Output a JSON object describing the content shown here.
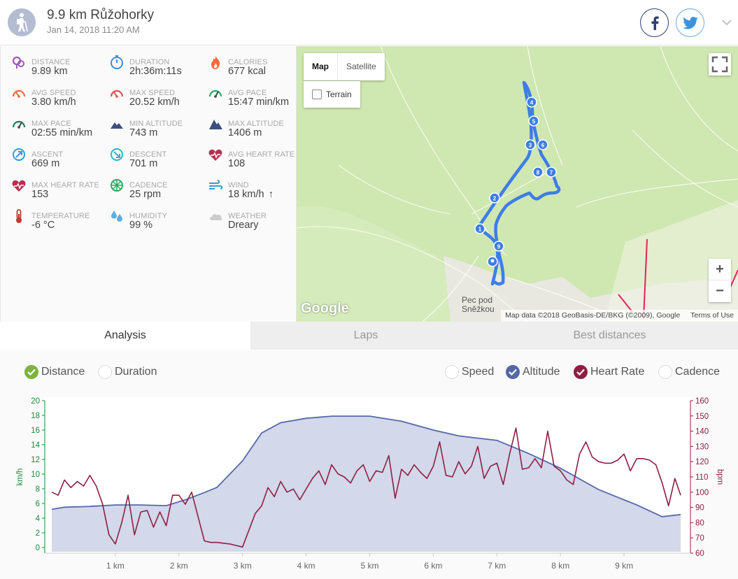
{
  "header": {
    "title": "9.9 km Růžohorky",
    "date": "Jan 14, 2018 11:20 AM",
    "avatar_icon": "hiker-icon",
    "social": [
      {
        "name": "facebook",
        "glyph": "f",
        "color": "#2d3f73"
      },
      {
        "name": "twitter",
        "glyph": "twitter-bird-icon",
        "color": "#3b94d9"
      }
    ]
  },
  "stats": [
    {
      "label": "DISTANCE",
      "value": "9.89 km",
      "icon": "location-pins-icon",
      "color": "#9b59b6"
    },
    {
      "label": "DURATION",
      "value": "2h:36m:11s",
      "icon": "stopwatch-icon",
      "color": "#3b8ee8"
    },
    {
      "label": "CALORIES",
      "value": "677 kcal",
      "icon": "flame-icon",
      "color": "#f26b3a"
    },
    {
      "label": "AVG SPEED",
      "value": "3.80 km/h",
      "icon": "speedometer-icon",
      "color": "#f26b3a"
    },
    {
      "label": "MAX SPEED",
      "value": "20.52 km/h",
      "icon": "speedometer-icon",
      "color": "#d9534f"
    },
    {
      "label": "AVG PACE",
      "value": "15:47 min/km",
      "icon": "pace-gauge-icon",
      "color": "#27ae60"
    },
    {
      "label": "MAX PACE",
      "value": "02:55 min/km",
      "icon": "pace-gauge-icon",
      "color": "#1f7a5a"
    },
    {
      "label": "MIN ALTITUDE",
      "value": "743 m",
      "icon": "mountain-low-icon",
      "color": "#3d4f7e"
    },
    {
      "label": "MAX ALTITUDE",
      "value": "1406 m",
      "icon": "mountain-high-icon",
      "color": "#3d4f7e"
    },
    {
      "label": "ASCENT",
      "value": "669 m",
      "icon": "ascent-arrow-icon",
      "color": "#2b9fd9"
    },
    {
      "label": "DESCENT",
      "value": "701 m",
      "icon": "descent-arrow-icon",
      "color": "#2bb5c9"
    },
    {
      "label": "AVG HEART RATE",
      "value": "108",
      "icon": "heart-rate-icon",
      "color": "#b8304f"
    },
    {
      "label": "MAX HEART RATE",
      "value": "153",
      "icon": "heart-rate-icon",
      "color": "#b8304f"
    },
    {
      "label": "CADENCE",
      "value": "25 rpm",
      "icon": "cadence-wheel-icon",
      "color": "#27ae60"
    },
    {
      "label": "WIND",
      "value": "18 km/h",
      "icon": "wind-icon",
      "color": "#3b9ad9",
      "arrow": "↑"
    },
    {
      "label": "TEMPERATURE",
      "value": "-6 °C",
      "icon": "thermometer-icon",
      "color": "#c0392b"
    },
    {
      "label": "HUMIDITY",
      "value": "99 %",
      "icon": "droplets-icon",
      "color": "#5dade2"
    },
    {
      "label": "WEATHER",
      "value": "Dreary",
      "icon": "cloud-icon",
      "color": "#cccccc"
    }
  ],
  "map": {
    "type_buttons": [
      "Map",
      "Satellite"
    ],
    "active_type": "Map",
    "terrain_label": "Terrain",
    "zoom_in": "+",
    "zoom_out": "−",
    "logo": "Google",
    "attribution": "Map data ©2018 GeoBasis-DE/BKG (©2009), Google",
    "terms": "Terms of Use",
    "town_label": "Pec pod Sněžkou",
    "route_color": "#3d7de8",
    "km_markers": [
      "1",
      "2",
      "3",
      "4",
      "5",
      "6",
      "7",
      "8",
      "9"
    ]
  },
  "tabs": [
    "Analysis",
    "Laps",
    "Best distances"
  ],
  "active_tab": "Analysis",
  "toggles_left": [
    {
      "label": "Distance",
      "checked": true,
      "color": "#7cb342"
    },
    {
      "label": "Duration",
      "checked": false,
      "color": "#cccccc"
    }
  ],
  "toggles_right": [
    {
      "label": "Speed",
      "checked": false,
      "color": "#cccccc"
    },
    {
      "label": "Altitude",
      "checked": true,
      "color": "#5468a8"
    },
    {
      "label": "Heart Rate",
      "checked": true,
      "color": "#8e1f43"
    },
    {
      "label": "Cadence",
      "checked": false,
      "color": "#cccccc"
    }
  ],
  "chart_data": {
    "type": "line",
    "x_unit_label": "km",
    "x_ticks": [
      "1 km",
      "2 km",
      "3 km",
      "4 km",
      "5 km",
      "6 km",
      "7 km",
      "8 km",
      "9 km"
    ],
    "x_range": [
      0,
      9.89
    ],
    "y_left": {
      "label": "km/h",
      "range": [
        0,
        20
      ],
      "ticks": [
        "0",
        "2",
        "4",
        "6",
        "8",
        "10",
        "12",
        "14",
        "16",
        "18",
        "20"
      ],
      "color": "#1e8a3c"
    },
    "y_right": {
      "label": "bpm",
      "range": [
        60,
        160
      ],
      "ticks": [
        "60",
        "70",
        "80",
        "90",
        "100",
        "110",
        "120",
        "130",
        "140",
        "150",
        "160"
      ],
      "color": "#8e1f43"
    },
    "series": [
      {
        "name": "Altitude",
        "render": "area",
        "color": "#5468a8",
        "fill": "#d3d8ea",
        "x": [
          0,
          0.2,
          0.6,
          1.0,
          1.4,
          1.8,
          2.1,
          2.4,
          2.6,
          3.0,
          3.3,
          3.6,
          4.0,
          4.4,
          5.0,
          5.5,
          6.0,
          6.4,
          7.0,
          7.5,
          8.0,
          8.6,
          9.2,
          9.6,
          9.89
        ],
        "y": [
          5.2,
          5.5,
          5.6,
          5.8,
          5.8,
          5.7,
          6.5,
          7.5,
          8.2,
          11.8,
          15.6,
          17.0,
          17.6,
          17.9,
          17.9,
          17.2,
          16.0,
          15.2,
          14.6,
          12.8,
          10.8,
          7.9,
          5.8,
          4.2,
          4.5
        ]
      },
      {
        "name": "Heart Rate",
        "render": "line",
        "color": "#8e1f43",
        "x": [
          0,
          0.1,
          0.2,
          0.3,
          0.4,
          0.5,
          0.6,
          0.7,
          0.8,
          0.9,
          1.0,
          1.1,
          1.2,
          1.3,
          1.4,
          1.5,
          1.6,
          1.7,
          1.8,
          1.9,
          2.0,
          2.1,
          2.2,
          2.4,
          2.5,
          2.6,
          2.8,
          3.0,
          3.2,
          3.3,
          3.4,
          3.5,
          3.6,
          3.7,
          3.8,
          3.9,
          4.0,
          4.1,
          4.2,
          4.3,
          4.4,
          4.5,
          4.6,
          4.7,
          4.8,
          4.9,
          5.0,
          5.1,
          5.2,
          5.3,
          5.4,
          5.5,
          5.6,
          5.7,
          5.8,
          5.9,
          6.0,
          6.1,
          6.2,
          6.3,
          6.4,
          6.5,
          6.6,
          6.7,
          6.8,
          6.9,
          7.0,
          7.1,
          7.2,
          7.3,
          7.4,
          7.5,
          7.6,
          7.7,
          7.8,
          7.9,
          8.0,
          8.1,
          8.2,
          8.3,
          8.4,
          8.5,
          8.6,
          8.7,
          8.8,
          8.9,
          9.0,
          9.1,
          9.2,
          9.3,
          9.4,
          9.5,
          9.6,
          9.7,
          9.8,
          9.89
        ],
        "y": [
          100,
          98,
          108,
          103,
          107,
          104,
          111,
          104,
          92,
          72,
          66,
          80,
          98,
          72,
          87,
          88,
          77,
          87,
          78,
          98,
          98,
          92,
          100,
          68,
          67,
          67,
          66,
          64,
          86,
          91,
          103,
          97,
          107,
          100,
          102,
          95,
          102,
          109,
          114,
          105,
          118,
          112,
          110,
          106,
          114,
          118,
          107,
          114,
          113,
          124,
          96,
          115,
          111,
          118,
          113,
          109,
          117,
          133,
          111,
          110,
          120,
          112,
          117,
          130,
          109,
          117,
          119,
          105,
          125,
          142,
          115,
          116,
          122,
          116,
          140,
          117,
          114,
          108,
          105,
          125,
          133,
          123,
          120,
          119,
          119,
          121,
          125,
          114,
          122,
          122,
          121,
          118,
          106,
          91,
          109,
          98
        ]
      }
    ]
  }
}
